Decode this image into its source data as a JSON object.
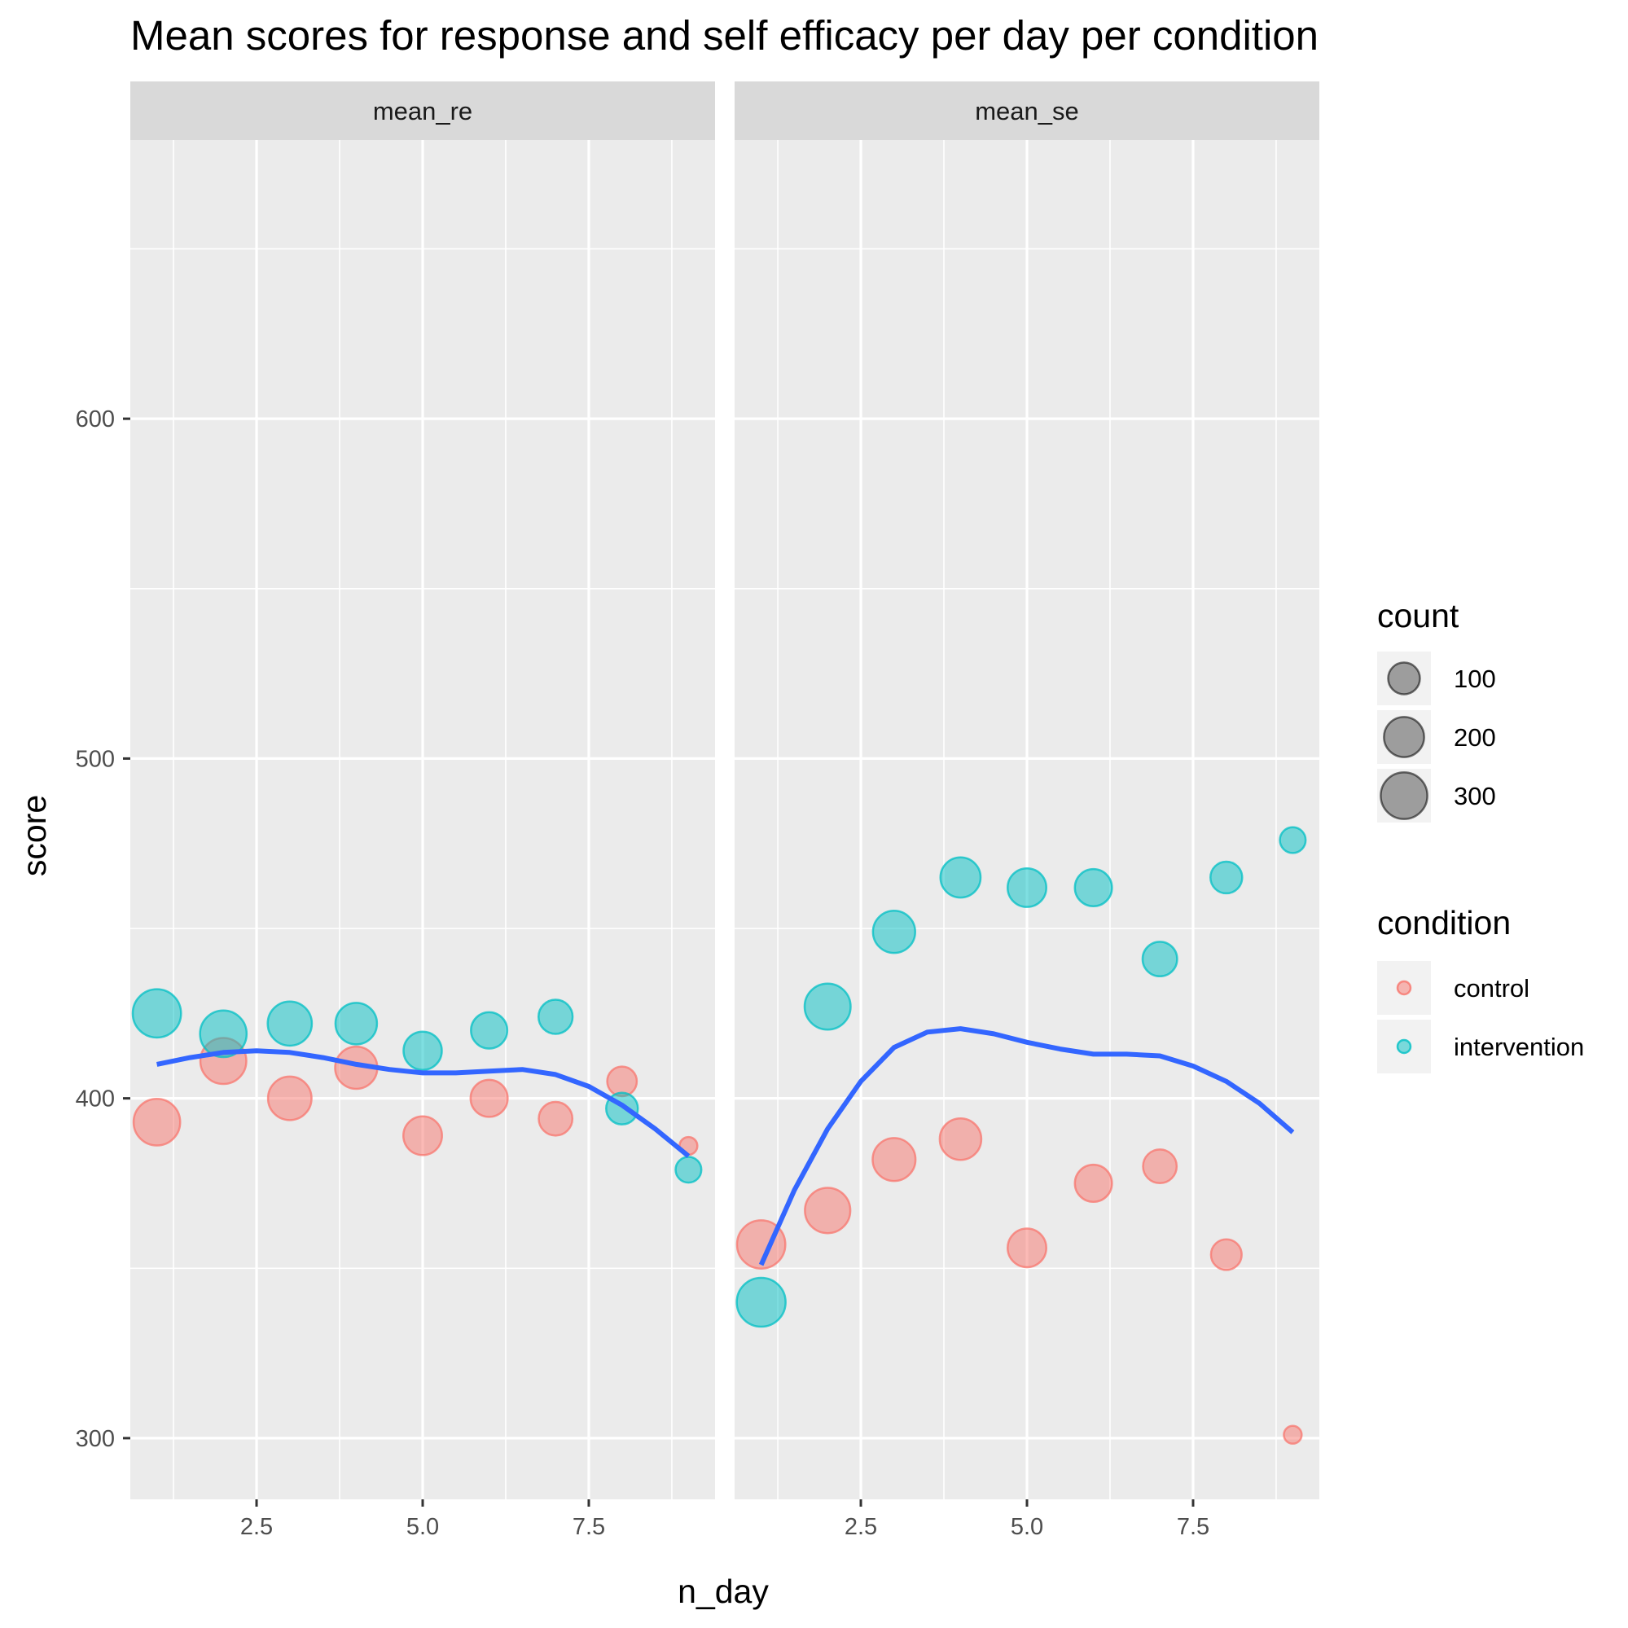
{
  "chart_data": {
    "type": "scatter",
    "title": "Mean scores for response and self efficacy per day per condition",
    "xlabel": "n_day",
    "ylabel": "score",
    "xlim": [
      0.6,
      9.4
    ],
    "ylim": [
      282,
      682
    ],
    "x_ticks": [
      2.5,
      5.0,
      7.5
    ],
    "x_tick_labels": [
      "2.5",
      "5.0",
      "7.5"
    ],
    "x_minor_ticks": [
      1.25,
      3.75,
      6.25,
      8.75
    ],
    "y_ticks": [
      300,
      400,
      500,
      600
    ],
    "y_tick_labels": [
      "300",
      "400",
      "500",
      "600"
    ],
    "y_minor_ticks": [
      350,
      450,
      550,
      650
    ],
    "grid": true,
    "smooth_color": "#3366ff",
    "point_opacity": 0.5,
    "conditions": [
      {
        "name": "control",
        "color": "#f8766d"
      },
      {
        "name": "intervention",
        "color": "#00bfc4"
      }
    ],
    "panels": [
      {
        "label": "mean_re",
        "series": [
          {
            "name": "control",
            "points": [
              {
                "x": 1,
                "y": 393,
                "count": 300
              },
              {
                "x": 2,
                "y": 411,
                "count": 290
              },
              {
                "x": 3,
                "y": 400,
                "count": 250
              },
              {
                "x": 4,
                "y": 409,
                "count": 230
              },
              {
                "x": 5,
                "y": 389,
                "count": 180
              },
              {
                "x": 6,
                "y": 400,
                "count": 160
              },
              {
                "x": 7,
                "y": 394,
                "count": 120
              },
              {
                "x": 8,
                "y": 405,
                "count": 80
              },
              {
                "x": 9,
                "y": 386,
                "count": 10
              }
            ]
          },
          {
            "name": "intervention",
            "points": [
              {
                "x": 1,
                "y": 425,
                "count": 330
              },
              {
                "x": 2,
                "y": 419,
                "count": 300
              },
              {
                "x": 3,
                "y": 422,
                "count": 260
              },
              {
                "x": 4,
                "y": 422,
                "count": 220
              },
              {
                "x": 5,
                "y": 414,
                "count": 175
              },
              {
                "x": 6,
                "y": 420,
                "count": 150
              },
              {
                "x": 7,
                "y": 424,
                "count": 125
              },
              {
                "x": 8,
                "y": 397,
                "count": 100
              },
              {
                "x": 9,
                "y": 379,
                "count": 50
              }
            ]
          }
        ],
        "smooth": [
          {
            "x": 1.0,
            "y": 410
          },
          {
            "x": 1.5,
            "y": 412
          },
          {
            "x": 2.0,
            "y": 413.5
          },
          {
            "x": 2.5,
            "y": 414
          },
          {
            "x": 3.0,
            "y": 413.5
          },
          {
            "x": 3.5,
            "y": 412
          },
          {
            "x": 4.0,
            "y": 410
          },
          {
            "x": 4.5,
            "y": 408.5
          },
          {
            "x": 5.0,
            "y": 407.5
          },
          {
            "x": 5.5,
            "y": 407.5
          },
          {
            "x": 6.0,
            "y": 408
          },
          {
            "x": 6.5,
            "y": 408.5
          },
          {
            "x": 7.0,
            "y": 407
          },
          {
            "x": 7.5,
            "y": 403.5
          },
          {
            "x": 8.0,
            "y": 398
          },
          {
            "x": 8.5,
            "y": 391
          },
          {
            "x": 9.0,
            "y": 383
          }
        ]
      },
      {
        "label": "mean_se",
        "series": [
          {
            "name": "control",
            "points": [
              {
                "x": 1,
                "y": 357,
                "count": 330
              },
              {
                "x": 2,
                "y": 367,
                "count": 280
              },
              {
                "x": 3,
                "y": 382,
                "count": 240
              },
              {
                "x": 4,
                "y": 388,
                "count": 220
              },
              {
                "x": 5,
                "y": 356,
                "count": 180
              },
              {
                "x": 6,
                "y": 375,
                "count": 160
              },
              {
                "x": 7,
                "y": 380,
                "count": 120
              },
              {
                "x": 8,
                "y": 354,
                "count": 90
              },
              {
                "x": 9,
                "y": 301,
                "count": 10
              }
            ]
          },
          {
            "name": "intervention",
            "points": [
              {
                "x": 1,
                "y": 340,
                "count": 340
              },
              {
                "x": 2,
                "y": 427,
                "count": 290
              },
              {
                "x": 3,
                "y": 449,
                "count": 230
              },
              {
                "x": 4,
                "y": 465,
                "count": 200
              },
              {
                "x": 5,
                "y": 462,
                "count": 180
              },
              {
                "x": 6,
                "y": 462,
                "count": 160
              },
              {
                "x": 7,
                "y": 441,
                "count": 130
              },
              {
                "x": 8,
                "y": 465,
                "count": 100
              },
              {
                "x": 9,
                "y": 476,
                "count": 50
              }
            ]
          }
        ],
        "smooth": [
          {
            "x": 1.0,
            "y": 351
          },
          {
            "x": 1.5,
            "y": 373
          },
          {
            "x": 2.0,
            "y": 391
          },
          {
            "x": 2.5,
            "y": 405
          },
          {
            "x": 3.0,
            "y": 415
          },
          {
            "x": 3.5,
            "y": 419.5
          },
          {
            "x": 4.0,
            "y": 420.5
          },
          {
            "x": 4.5,
            "y": 419
          },
          {
            "x": 5.0,
            "y": 416.5
          },
          {
            "x": 5.5,
            "y": 414.5
          },
          {
            "x": 6.0,
            "y": 413
          },
          {
            "x": 6.5,
            "y": 413
          },
          {
            "x": 7.0,
            "y": 412.5
          },
          {
            "x": 7.5,
            "y": 409.5
          },
          {
            "x": 8.0,
            "y": 405
          },
          {
            "x": 8.5,
            "y": 398.5
          },
          {
            "x": 9.0,
            "y": 390
          }
        ]
      }
    ],
    "legend": {
      "position": "right",
      "count_title": "count",
      "count_entries": [
        {
          "label": "100",
          "count": 100
        },
        {
          "label": "200",
          "count": 200
        },
        {
          "label": "300",
          "count": 300
        }
      ],
      "count_key_color": "#000000",
      "condition_title": "condition",
      "condition_entries": [
        {
          "label": "control",
          "color": "#f8766d"
        },
        {
          "label": "intervention",
          "color": "#00bfc4"
        }
      ]
    }
  }
}
